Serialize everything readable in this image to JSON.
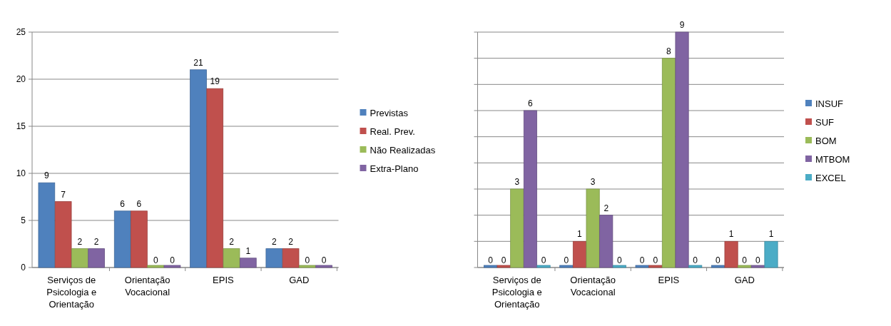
{
  "chart_data": [
    {
      "type": "bar",
      "categories": [
        "Serviços de Psicologia e Orientação",
        "Orientação Vocacional",
        "EPIS",
        "GAD"
      ],
      "series": [
        {
          "name": "Previstas",
          "color": "#4f81bd",
          "values": [
            9,
            6,
            21,
            2
          ]
        },
        {
          "name": "Real. Prev.",
          "color": "#c0504d",
          "values": [
            7,
            6,
            19,
            2
          ]
        },
        {
          "name": "Não Realizadas",
          "color": "#9bbb59",
          "values": [
            2,
            0,
            2,
            0
          ]
        },
        {
          "name": "Extra-Plano",
          "color": "#8064a2",
          "values": [
            2,
            0,
            1,
            0
          ]
        }
      ],
      "ylim": [
        0,
        25
      ],
      "yticks": [
        0,
        5,
        10,
        15,
        20,
        25
      ],
      "grid": "y",
      "legend": "right",
      "data_labels": true
    },
    {
      "type": "bar",
      "categories": [
        "Serviços de Psicologia e Orientação",
        "Orientação Vocacional",
        "EPIS",
        "GAD"
      ],
      "series": [
        {
          "name": "INSUF",
          "color": "#4f81bd",
          "values": [
            0,
            0,
            0,
            0
          ]
        },
        {
          "name": "SUF",
          "color": "#c0504d",
          "values": [
            0,
            1,
            0,
            1
          ]
        },
        {
          "name": "BOM",
          "color": "#9bbb59",
          "values": [
            3,
            3,
            8,
            0
          ]
        },
        {
          "name": "MTBOM",
          "color": "#8064a2",
          "values": [
            6,
            2,
            9,
            0
          ]
        },
        {
          "name": "EXCEL",
          "color": "#4bacc6",
          "values": [
            0,
            0,
            0,
            1
          ]
        }
      ],
      "ylim": [
        0,
        9
      ],
      "yticks": [
        {
          "value": 0,
          "label": null
        },
        {
          "value": 1,
          "label": null
        },
        {
          "value": 2,
          "label": null
        },
        {
          "value": 3,
          "label": null
        },
        {
          "value": 4,
          "label": null
        },
        {
          "value": 5,
          "label": null
        },
        {
          "value": 6,
          "label": null
        },
        {
          "value": 7,
          "label": null
        },
        {
          "value": 8,
          "label": null
        },
        {
          "value": 9,
          "label": null
        }
      ],
      "tick_labels": "x",
      "grid": "y",
      "legend": "right",
      "data_labels": true
    }
  ]
}
